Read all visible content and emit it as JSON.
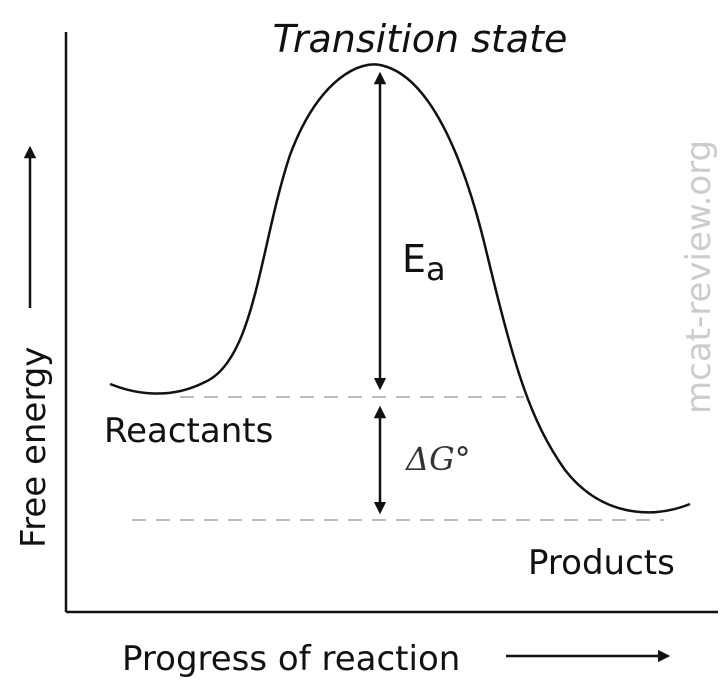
{
  "diagram": {
    "title": "Transition state",
    "activation_label_main": "E",
    "activation_label_sub": "a",
    "delta_g_label": "ΔG°",
    "reactants_label": "Reactants",
    "products_label": "Products",
    "y_axis_label": "Free energy",
    "x_axis_label": "Progress of reaction",
    "watermark": "mcat-review.org"
  },
  "colors": {
    "line": "#111111",
    "dashed": "#bbbbbb",
    "watermark": "#cccccc"
  }
}
